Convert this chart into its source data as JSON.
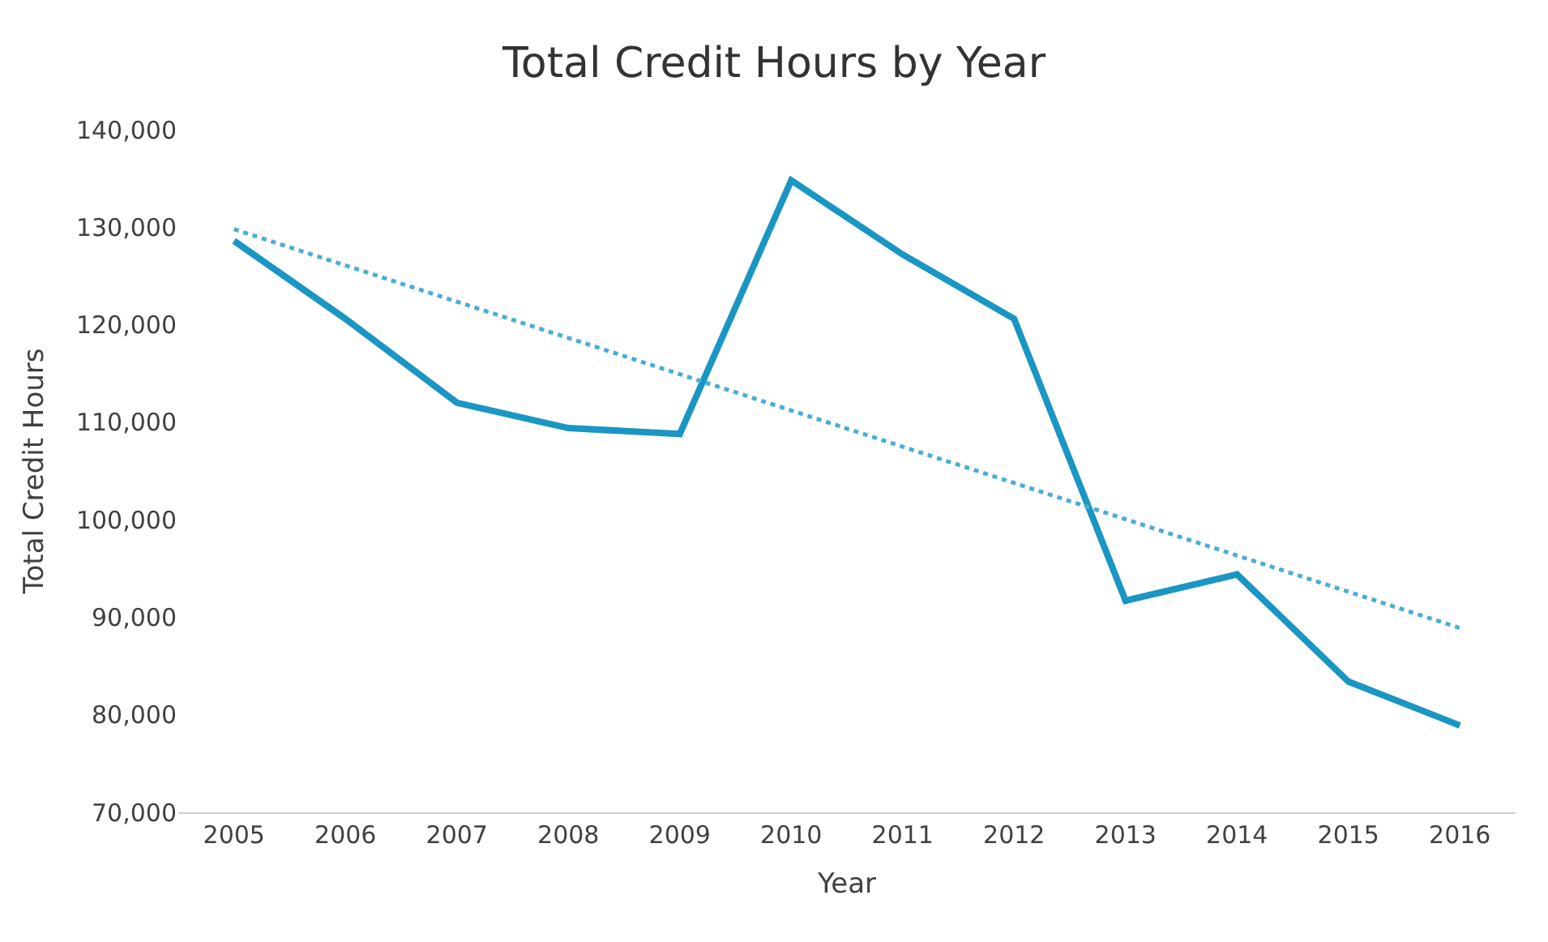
{
  "chart_data": {
    "type": "line",
    "title": "Total Credit Hours by Year",
    "xlabel": "Year",
    "ylabel": "Total Credit Hours",
    "x": [
      2005,
      2006,
      2007,
      2008,
      2009,
      2010,
      2011,
      2012,
      2013,
      2014,
      2015,
      2016
    ],
    "series": [
      {
        "color": "#1a96c4",
        "values": [
          128600,
          120600,
          112000,
          109400,
          108800,
          134800,
          127200,
          120600,
          91700,
          94400,
          83400,
          78900
        ]
      },
      {
        "type": "line",
        "color": "#4aaed4",
        "line_style": "dotted",
        "x": [
          2005,
          2016
        ],
        "values": [
          129800,
          88900
        ]
      }
    ],
    "xlim": [
      2004.5,
      2016.5
    ],
    "xticks": [
      2005,
      2006,
      2007,
      2008,
      2009,
      2010,
      2011,
      2012,
      2013,
      2014,
      2015,
      2016
    ],
    "ylim": [
      70000,
      140000
    ],
    "yticks": [
      {
        "value": 70000,
        "label": "70,000"
      },
      {
        "value": 80000,
        "label": "80,000"
      },
      {
        "value": 90000,
        "label": "90,000"
      },
      {
        "value": 100000,
        "label": "100,000"
      },
      {
        "value": 110000,
        "label": "110,000"
      },
      {
        "value": 120000,
        "label": "120,000"
      },
      {
        "value": 130000,
        "label": "130,000"
      },
      {
        "value": 140000,
        "label": "140,000"
      }
    ],
    "grid": false,
    "marker": "none",
    "line_style": "solid"
  }
}
